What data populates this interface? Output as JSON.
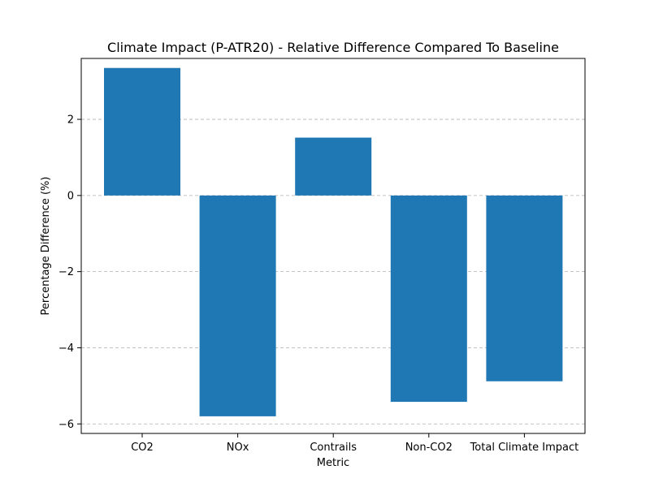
{
  "chart_data": {
    "type": "bar",
    "title": "Climate Impact (P-ATR20) - Relative Difference Compared To Baseline",
    "xlabel": "Metric",
    "ylabel": "Percentage Difference (%)",
    "categories": [
      "CO2",
      "NOx",
      "Contrails",
      "Non-CO2",
      "Total Climate Impact"
    ],
    "values": [
      3.35,
      -5.8,
      1.52,
      -5.42,
      -4.88
    ],
    "ylim": [
      -6.25,
      3.6
    ],
    "yticks": [
      2,
      0,
      -2,
      -4,
      -6
    ],
    "ytick_labels": [
      "2",
      "0",
      "−2",
      "−4",
      "−6"
    ],
    "grid": "y-dashed",
    "bar_color": "#1f77b4",
    "grid_color": "#b0b0b0"
  }
}
